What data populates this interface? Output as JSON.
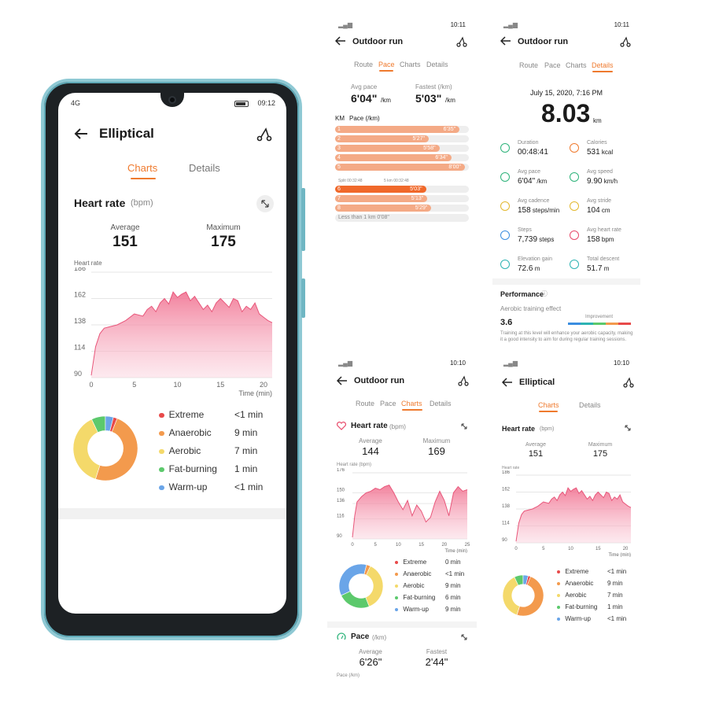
{
  "phone": {
    "status_time": "09:12",
    "status_signal": "4G",
    "title": "Elliptical",
    "tabs": [
      "Charts",
      "Details"
    ],
    "section_title": "Heart rate",
    "section_unit": "(bpm)",
    "average_label": "Average",
    "average_value": "151",
    "maximum_label": "Maximum",
    "maximum_value": "175",
    "y_axis_label": "Heart rate",
    "x_axis_label": "Time (min)",
    "y_ticks": [
      "186",
      "162",
      "138",
      "114",
      "90"
    ],
    "x_ticks": [
      "0",
      "5",
      "10",
      "15",
      "20"
    ],
    "zones": [
      {
        "name": "Extreme",
        "value": "<1 min",
        "color": "#e84a4a"
      },
      {
        "name": "Anaerobic",
        "value": "9 min",
        "color": "#f39a4d"
      },
      {
        "name": "Aerobic",
        "value": "7 min",
        "color": "#f4d96a"
      },
      {
        "name": "Fat-burning",
        "value": "1 min",
        "color": "#5cc96c"
      },
      {
        "name": "Warm-up",
        "value": "<1 min",
        "color": "#6aa5e8"
      }
    ]
  },
  "pace_screen": {
    "status_time": "10:11",
    "title": "Outdoor run",
    "tabs": [
      "Route",
      "Pace",
      "Charts",
      "Details"
    ],
    "active_tab": "Pace",
    "avg_pace_label": "Avg pace",
    "avg_pace_value": "6'04\"",
    "avg_pace_unit": "/km",
    "fastest_label": "Fastest (/km)",
    "fastest_value": "5'03\"",
    "fastest_unit": "/km",
    "km_header": "KM",
    "pace_header": "Pace (/km)",
    "km_rows": [
      {
        "km": "1",
        "pace": "6'35\"",
        "frac": 0.93
      },
      {
        "km": "2",
        "pace": "5'27\"",
        "frac": 0.7
      },
      {
        "km": "3",
        "pace": "5'58\"",
        "frac": 0.78
      },
      {
        "km": "4",
        "pace": "6'34\"",
        "frac": 0.87
      },
      {
        "km": "5",
        "pace": "8'00\"",
        "frac": 0.97
      }
    ],
    "split_left": "Split 00:32:48",
    "split_right": "5 km 00:32:48",
    "km_rows_2": [
      {
        "km": "6",
        "pace": "5'03\"",
        "frac": 0.68
      },
      {
        "km": "7",
        "pace": "5'13\"",
        "frac": 0.69
      },
      {
        "km": "8",
        "pace": "5'29\"",
        "frac": 0.72
      }
    ],
    "less_than": "Less than 1 km 0'08\""
  },
  "details_screen": {
    "status_time": "10:11",
    "title": "Outdoor run",
    "tabs": [
      "Route",
      "Pace",
      "Charts",
      "Details"
    ],
    "active_tab": "Details",
    "date": "July 15, 2020, 7:16 PM",
    "distance": "8.03",
    "distance_unit": "km",
    "stats": [
      {
        "label": "Duration",
        "value": "00:48:41",
        "unit": "",
        "icon": "clock-icon",
        "color": "#2db37a"
      },
      {
        "label": "Calories",
        "value": "531",
        "unit": "kcal",
        "icon": "flame-icon",
        "color": "#ef7a2e"
      },
      {
        "label": "Avg pace",
        "value": "6'04\"",
        "unit": "/km",
        "icon": "gauge-icon",
        "color": "#2db37a"
      },
      {
        "label": "Avg speed",
        "value": "9.90",
        "unit": "km/h",
        "icon": "speedometer-icon",
        "color": "#2db37a"
      },
      {
        "label": "Avg cadence",
        "value": "158",
        "unit": "steps/min",
        "icon": "footprints-icon",
        "color": "#e3b82e"
      },
      {
        "label": "Avg stride",
        "value": "104",
        "unit": "cm",
        "icon": "stride-icon",
        "color": "#e3b82e"
      },
      {
        "label": "Steps",
        "value": "7,739",
        "unit": "steps",
        "icon": "shoe-icon",
        "color": "#3a8de0"
      },
      {
        "label": "Avg heart rate",
        "value": "158",
        "unit": "bpm",
        "icon": "heart-icon",
        "color": "#e84a6a"
      },
      {
        "label": "Elevation gain",
        "value": "72.6",
        "unit": "m",
        "icon": "climb-icon",
        "color": "#2db3b3"
      },
      {
        "label": "Total descent",
        "value": "51.7",
        "unit": "m",
        "icon": "descent-icon",
        "color": "#2db3b3"
      }
    ],
    "performance_title": "Performance",
    "aerobic_label": "Aerobic training effect",
    "aerobic_value": "3.6",
    "improvement_label": "Improvement",
    "aerobic_note": "Training at this level will enhance your aerobic capacity, making it a good intensity to aim for during regular training sessions."
  },
  "run_charts_screen": {
    "status_time": "10:10",
    "title": "Outdoor run",
    "tabs": [
      "Route",
      "Pace",
      "Charts",
      "Details"
    ],
    "active_tab": "Charts",
    "section_title": "Heart rate",
    "section_unit": "(bpm)",
    "average_label": "Average",
    "average_value": "144",
    "maximum_label": "Maximum",
    "maximum_value": "169",
    "y_axis_label": "Heart rate (bpm)",
    "x_axis_label": "Time (min)",
    "y_ticks": [
      "176",
      "150",
      "136",
      "116",
      "90"
    ],
    "x_ticks": [
      "0",
      "5",
      "10",
      "15",
      "20",
      "25"
    ],
    "zones": [
      {
        "name": "Extreme",
        "value": "0 min",
        "color": "#e84a4a"
      },
      {
        "name": "Anaerobic",
        "value": "<1 min",
        "color": "#f39a4d"
      },
      {
        "name": "Aerobic",
        "value": "9 min",
        "color": "#f4d96a"
      },
      {
        "name": "Fat-burning",
        "value": "6 min",
        "color": "#5cc96c"
      },
      {
        "name": "Warm-up",
        "value": "9 min",
        "color": "#6aa5e8"
      }
    ],
    "pace_title": "Pace",
    "pace_unit": "(/km)",
    "pace_avg_label": "Average",
    "pace_avg_value": "6'26\"",
    "pace_fast_label": "Fastest",
    "pace_fast_value": "2'44\"",
    "pace_axis_label": "Pace (/km)"
  },
  "ell_small_screen": {
    "status_time": "10:10",
    "title": "Elliptical",
    "tabs": [
      "Charts",
      "Details"
    ],
    "section_title": "Heart rate",
    "section_unit": "(bpm)",
    "average_label": "Average",
    "average_value": "151",
    "maximum_label": "Maximum",
    "maximum_value": "175",
    "y_axis_label": "Heart rate",
    "x_axis_label": "Time (min)",
    "y_ticks": [
      "186",
      "162",
      "138",
      "114",
      "90"
    ],
    "x_ticks": [
      "0",
      "5",
      "10",
      "15",
      "20"
    ],
    "zones": [
      {
        "name": "Extreme",
        "value": "<1 min",
        "color": "#e84a4a"
      },
      {
        "name": "Anaerobic",
        "value": "9 min",
        "color": "#f39a4d"
      },
      {
        "name": "Aerobic",
        "value": "7 min",
        "color": "#f4d96a"
      },
      {
        "name": "Fat-burning",
        "value": "1 min",
        "color": "#5cc96c"
      },
      {
        "name": "Warm-up",
        "value": "<1 min",
        "color": "#6aa5e8"
      }
    ]
  },
  "chart_data": [
    {
      "type": "area",
      "y_axis_label": "Heart rate",
      "x_axis_label": "Time (min)",
      "xlim": [
        0,
        21
      ],
      "ylim": [
        90,
        186
      ],
      "x": [
        0,
        0.5,
        1,
        1.5,
        2,
        3,
        4,
        5,
        6,
        6.5,
        7,
        7.5,
        8,
        8.5,
        9,
        9.5,
        10,
        10.5,
        11,
        11.5,
        12,
        12.5,
        13,
        13.5,
        14,
        14.5,
        15,
        15.5,
        16,
        16.5,
        17,
        17.5,
        18,
        18.5,
        19,
        19.5,
        20,
        20.5,
        21
      ],
      "y": [
        92,
        118,
        130,
        135,
        136,
        138,
        142,
        148,
        146,
        152,
        155,
        150,
        158,
        162,
        157,
        168,
        163,
        166,
        168,
        160,
        164,
        158,
        152,
        156,
        150,
        158,
        162,
        158,
        154,
        162,
        160,
        150,
        155,
        152,
        158,
        148,
        145,
        142,
        140
      ],
      "series_color": "#e8567a",
      "zones": [
        {
          "name": "Extreme",
          "value": "<1 min",
          "share": 0.02
        },
        {
          "name": "Anaerobic",
          "value": "9 min",
          "share": 0.49
        },
        {
          "name": "Aerobic",
          "value": "7 min",
          "share": 0.38
        },
        {
          "name": "Fat-burning",
          "value": "1 min",
          "share": 0.07
        },
        {
          "name": "Warm-up",
          "value": "<1 min",
          "share": 0.04
        }
      ]
    },
    {
      "type": "area",
      "y_axis_label": "Heart rate (bpm)",
      "x_axis_label": "Time (min)",
      "xlim": [
        0,
        25
      ],
      "ylim": [
        90,
        176
      ],
      "x": [
        0,
        0.5,
        1,
        2,
        3,
        4,
        5,
        6,
        7,
        8,
        9,
        10,
        11,
        12,
        13,
        14,
        15,
        16,
        17,
        18,
        19,
        20,
        21,
        22,
        23,
        24,
        25
      ],
      "y": [
        92,
        120,
        138,
        145,
        150,
        152,
        156,
        154,
        158,
        160,
        150,
        138,
        128,
        140,
        120,
        134,
        126,
        112,
        118,
        138,
        152,
        140,
        120,
        150,
        158,
        152,
        154
      ],
      "series_color": "#e8567a",
      "zones": [
        {
          "name": "Extreme",
          "value": "0 min",
          "share": 0.0
        },
        {
          "name": "Anaerobic",
          "value": "<1 min",
          "share": 0.03
        },
        {
          "name": "Aerobic",
          "value": "9 min",
          "share": 0.37
        },
        {
          "name": "Fat-burning",
          "value": "6 min",
          "share": 0.24
        },
        {
          "name": "Warm-up",
          "value": "9 min",
          "share": 0.36
        }
      ]
    },
    {
      "type": "area",
      "y_axis_label": "Heart rate",
      "x_axis_label": "Time (min)",
      "xlim": [
        0,
        21
      ],
      "ylim": [
        90,
        186
      ],
      "x": [
        0,
        0.5,
        1,
        1.5,
        2,
        3,
        4,
        5,
        6,
        6.5,
        7,
        7.5,
        8,
        8.5,
        9,
        9.5,
        10,
        10.5,
        11,
        11.5,
        12,
        12.5,
        13,
        13.5,
        14,
        14.5,
        15,
        15.5,
        16,
        16.5,
        17,
        17.5,
        18,
        18.5,
        19,
        19.5,
        20,
        20.5,
        21
      ],
      "y": [
        92,
        118,
        130,
        135,
        136,
        138,
        142,
        148,
        146,
        152,
        155,
        150,
        158,
        162,
        157,
        168,
        163,
        166,
        168,
        160,
        164,
        158,
        152,
        156,
        150,
        158,
        162,
        158,
        154,
        162,
        160,
        150,
        155,
        152,
        158,
        148,
        145,
        142,
        140
      ],
      "series_color": "#e8567a",
      "zones": [
        {
          "name": "Extreme",
          "value": "<1 min",
          "share": 0.02
        },
        {
          "name": "Anaerobic",
          "value": "9 min",
          "share": 0.49
        },
        {
          "name": "Aerobic",
          "value": "7 min",
          "share": 0.38
        },
        {
          "name": "Fat-burning",
          "value": "1 min",
          "share": 0.07
        },
        {
          "name": "Warm-up",
          "value": "<1 min",
          "share": 0.04
        }
      ]
    }
  ]
}
